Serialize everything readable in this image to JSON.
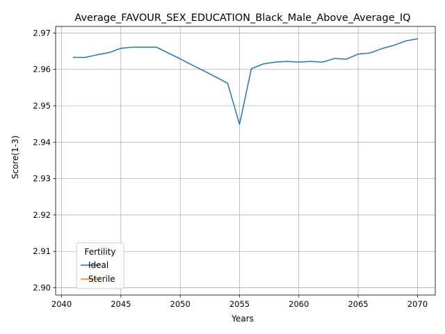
{
  "chart_data": {
    "type": "line",
    "title": "Average_FAVOUR_SEX_EDUCATION_Black_Male_Above_Average_IQ",
    "xlabel": "Years",
    "ylabel": "Score(1-3)",
    "xlim": [
      2039.5,
      2071.5
    ],
    "ylim": [
      2.898,
      2.9718
    ],
    "xticks": [
      2040,
      2045,
      2050,
      2055,
      2060,
      2065,
      2070
    ],
    "yticks": [
      2.9,
      2.91,
      2.92,
      2.93,
      2.94,
      2.95,
      2.96,
      2.97
    ],
    "ytick_labels": [
      "2.90",
      "2.91",
      "2.92",
      "2.93",
      "2.94",
      "2.95",
      "2.96",
      "2.97"
    ],
    "grid": true,
    "legend": {
      "title": "Fertility",
      "position": "lower-left"
    },
    "series": [
      {
        "name": "Ideal",
        "color": "#1f77b4",
        "x": [
          2041,
          2042,
          2043,
          2044,
          2045,
          2046,
          2047,
          2048,
          2049,
          2050,
          2051,
          2052,
          2053,
          2054,
          2055,
          2056,
          2057,
          2058,
          2059,
          2060,
          2061,
          2062,
          2063,
          2064,
          2065,
          2066,
          2067,
          2068,
          2069,
          2070
        ],
        "y": [
          2.9633,
          2.9633,
          2.964,
          2.9646,
          2.9658,
          2.9661,
          2.9661,
          2.9661,
          2.9645,
          2.9629,
          2.9612,
          2.9596,
          2.9579,
          2.9562,
          2.9449,
          2.9602,
          2.9615,
          2.962,
          2.9622,
          2.962,
          2.9622,
          2.962,
          2.963,
          2.9628,
          2.9642,
          2.9645,
          2.9657,
          2.9666,
          2.9678,
          2.9684
        ]
      },
      {
        "name": "Sterile",
        "color": "#ff7f0e",
        "x": [],
        "y": []
      }
    ]
  }
}
